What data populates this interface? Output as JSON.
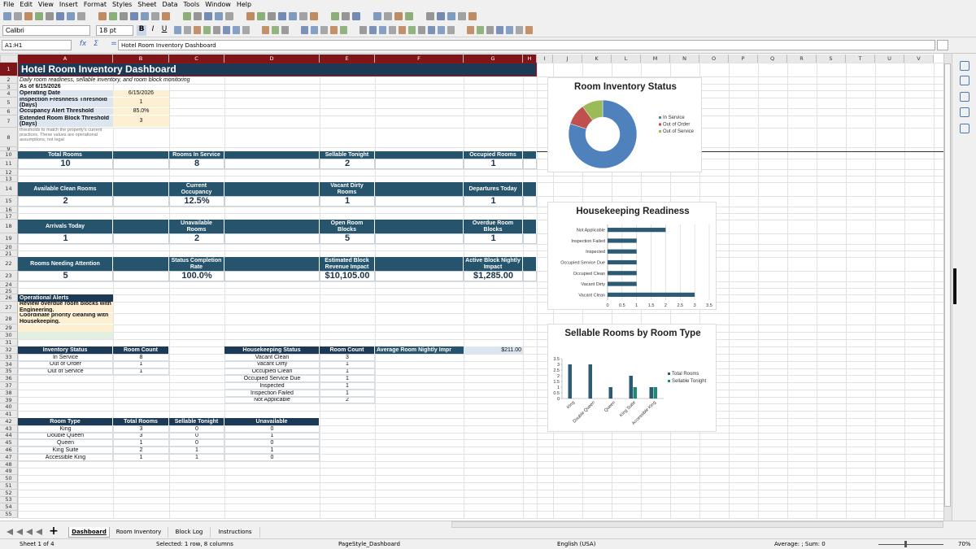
{
  "menu": [
    "File",
    "Edit",
    "View",
    "Insert",
    "Format",
    "Styles",
    "Sheet",
    "Data",
    "Tools",
    "Window",
    "Help"
  ],
  "toolbar": {
    "font_name": "Calibri",
    "font_size": "18 pt",
    "format_buttons": [
      "B",
      "I",
      "U"
    ]
  },
  "formula_bar": {
    "name_box": "A1:H1",
    "icons": [
      "fx",
      "Σ",
      "="
    ],
    "content": "Hotel Room Inventory Dashboard"
  },
  "columns": [
    "A",
    "B",
    "C",
    "D",
    "E",
    "F",
    "G",
    "H",
    "I",
    "J",
    "K",
    "L",
    "M",
    "N",
    "O",
    "P",
    "Q",
    "R",
    "S",
    "T",
    "U",
    "V"
  ],
  "rows": [
    1,
    2,
    3,
    4,
    5,
    6,
    7,
    8,
    9,
    10,
    11,
    12,
    13,
    14,
    15,
    16,
    17,
    18,
    19,
    20,
    21,
    22,
    23,
    24,
    25,
    26,
    27,
    28,
    29,
    30,
    31,
    32,
    33,
    34,
    35,
    36,
    37,
    38,
    39,
    40,
    41,
    42,
    43,
    44,
    45,
    46,
    47,
    48,
    49,
    50,
    51,
    52,
    53,
    54,
    55
  ],
  "sheet": {
    "title": "Hotel Room Inventory Dashboard",
    "subtitle": "Daily room readiness, sellable inventory, and room block monitoring",
    "as_of": "As of 6/15/2026",
    "parameters": [
      {
        "label": "Operating Date",
        "value": "6/15/2026"
      },
      {
        "label": "Inspection Freshness Threshold (Days)",
        "value": "1"
      },
      {
        "label": "Occupancy Alert Threshold",
        "value": "85.0%"
      },
      {
        "label": "Extended Room Block Threshold (Days)",
        "value": "3"
      }
    ],
    "note": "thresholds to match the property's current practices. These values are operational assumptions, not legal",
    "kpi_rows": [
      [
        {
          "label": "Total Rooms",
          "value": "10"
        },
        {
          "label": "Rooms In Service",
          "value": "8"
        },
        {
          "label": "Sellable Tonight",
          "value": "2"
        },
        {
          "label": "Occupied Rooms",
          "value": "1"
        }
      ],
      [
        {
          "label": "Available Clean Rooms",
          "value": "2"
        },
        {
          "label": "Current Occupancy",
          "value": "12.5%"
        },
        {
          "label": "Vacant Dirty Rooms",
          "value": "1"
        },
        {
          "label": "Departures Today",
          "value": "1"
        }
      ],
      [
        {
          "label": "Arrivals Today",
          "value": "1"
        },
        {
          "label": "Unavailable Rooms",
          "value": "2"
        },
        {
          "label": "Open Room Blocks",
          "value": "5"
        },
        {
          "label": "Overdue Room Blocks",
          "value": "1"
        }
      ],
      [
        {
          "label": "Rooms Needing Attention",
          "value": "5"
        },
        {
          "label": "Status Completion Rate",
          "value": "100.0%"
        },
        {
          "label": "Estimated Block Revenue Impact",
          "value": "$10,105.00"
        },
        {
          "label": "Active Block Nightly Impact",
          "value": "$1,285.00"
        }
      ]
    ],
    "alerts": {
      "header": "Operational Alerts",
      "items": [
        "Review overdue room blocks with Engineering.",
        "Coordinate priority cleaning with Housekeeping."
      ]
    },
    "inventory_table": {
      "headers": [
        "Inventory Status",
        "Room Count"
      ],
      "rows": [
        [
          "In Service",
          "8"
        ],
        [
          "Out of Order",
          "1"
        ],
        [
          "Out of Service",
          "1"
        ]
      ]
    },
    "housekeeping_table": {
      "headers": [
        "Housekeeping Status",
        "Room Count"
      ],
      "rows": [
        [
          "Vacant Clean",
          "3"
        ],
        [
          "Vacant Dirty",
          "1"
        ],
        [
          "Occupied Clean",
          "1"
        ],
        [
          "Occupied Service Due",
          "1"
        ],
        [
          "Inspected",
          "1"
        ],
        [
          "Inspection Failed",
          "1"
        ],
        [
          "Not Applicable",
          "2"
        ]
      ]
    },
    "average": {
      "label": "Average Room Nightly Impr",
      "value": "$211.00"
    },
    "room_type_table": {
      "headers": [
        "Room Type",
        "Total Rooms",
        "Sellable Tonight",
        "Unavailable"
      ],
      "rows": [
        [
          "King",
          "3",
          "0",
          "0"
        ],
        [
          "Double Queen",
          "3",
          "0",
          "1"
        ],
        [
          "Queen",
          "1",
          "0",
          "0"
        ],
        [
          "King Suite",
          "2",
          "1",
          "1"
        ],
        [
          "Accessible King",
          "1",
          "1",
          "0"
        ]
      ]
    }
  },
  "chart_data": [
    {
      "type": "pie",
      "title": "Room Inventory Status",
      "categories": [
        "In Service",
        "Out of Order",
        "Out of Service"
      ],
      "values": [
        8,
        1,
        1
      ],
      "colors": [
        "#4f81bd",
        "#c0504d",
        "#9bbb59"
      ],
      "legend": "right"
    },
    {
      "type": "hbar",
      "title": "Housekeeping Readiness",
      "categories": [
        "Vacant Clean",
        "Vacant Dirty",
        "Occupied Clean",
        "Occupied Service Due",
        "Inspected",
        "Inspection Failed",
        "Not Applicable"
      ],
      "values": [
        3,
        1,
        1,
        1,
        1,
        1,
        2
      ],
      "color": "#2e5b74",
      "xlim": [
        0,
        3.5
      ],
      "xticks": [
        0,
        0.5,
        1,
        1.5,
        2,
        2.5,
        3,
        3.5
      ],
      "grid": true
    },
    {
      "type": "bar",
      "title": "Sellable Rooms by Room Type",
      "categories": [
        "King",
        "Double Queen",
        "Queen",
        "King Suite",
        "Accessible King"
      ],
      "series": [
        {
          "name": "Total Rooms",
          "color": "#2e5b74",
          "values": [
            3,
            3,
            1,
            2,
            1
          ]
        },
        {
          "name": "Sellable Tonight",
          "color": "#1d8a72",
          "values": [
            0,
            0,
            0,
            1,
            1
          ]
        }
      ],
      "ylim": [
        0,
        3.5
      ],
      "yticks": [
        0,
        0.5,
        1,
        1.5,
        2,
        2.5,
        3,
        3.5
      ],
      "legend": "right"
    }
  ],
  "tab_bar": {
    "add": "+",
    "tabs": [
      "Dashboard",
      "Room Inventory",
      "Block Log",
      "Instructions"
    ]
  },
  "status_bar": {
    "sheet": "Sheet 1 of 4",
    "selection": "Selected: 1 row, 8 columns",
    "page_style": "PageStyle_Dashboard",
    "language": "English (USA)",
    "summary": "Average: ; Sum: 0",
    "zoom": "70%"
  }
}
